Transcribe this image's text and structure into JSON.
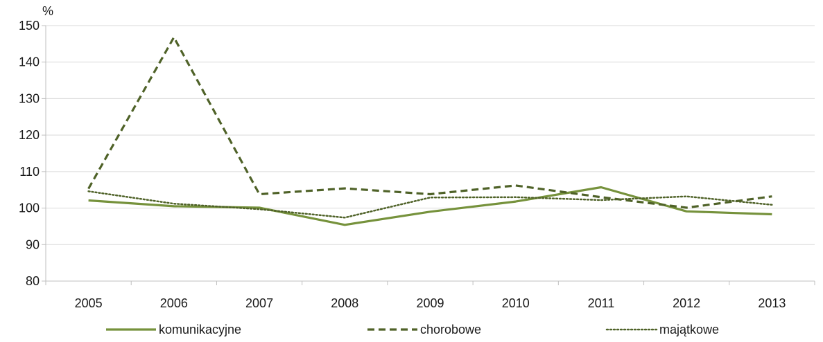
{
  "chart_data": {
    "type": "line",
    "unit_label": "%",
    "categories": [
      "2005",
      "2006",
      "2007",
      "2008",
      "2009",
      "2010",
      "2011",
      "2012",
      "2013"
    ],
    "ylim": [
      80,
      150
    ],
    "yticks": [
      80,
      90,
      100,
      110,
      120,
      130,
      140,
      150
    ],
    "grid": true,
    "legend": "bottom",
    "series": [
      {
        "name": "komunikacyjne",
        "values": [
          102.1,
          100.5,
          100.1,
          95.4,
          99.0,
          101.8,
          105.7,
          99.1,
          98.3
        ],
        "color": "#76923c",
        "style": "solid"
      },
      {
        "name": "chorobowe",
        "values": [
          105.3,
          146.8,
          103.8,
          105.4,
          103.8,
          106.2,
          103.0,
          100.1,
          103.2
        ],
        "color": "#4f6228",
        "style": "dashed"
      },
      {
        "name": "majątkowe",
        "values": [
          104.6,
          101.2,
          99.7,
          97.4,
          102.9,
          103.0,
          102.2,
          103.2,
          100.9
        ],
        "color": "#4f6228",
        "style": "dotted"
      }
    ]
  }
}
